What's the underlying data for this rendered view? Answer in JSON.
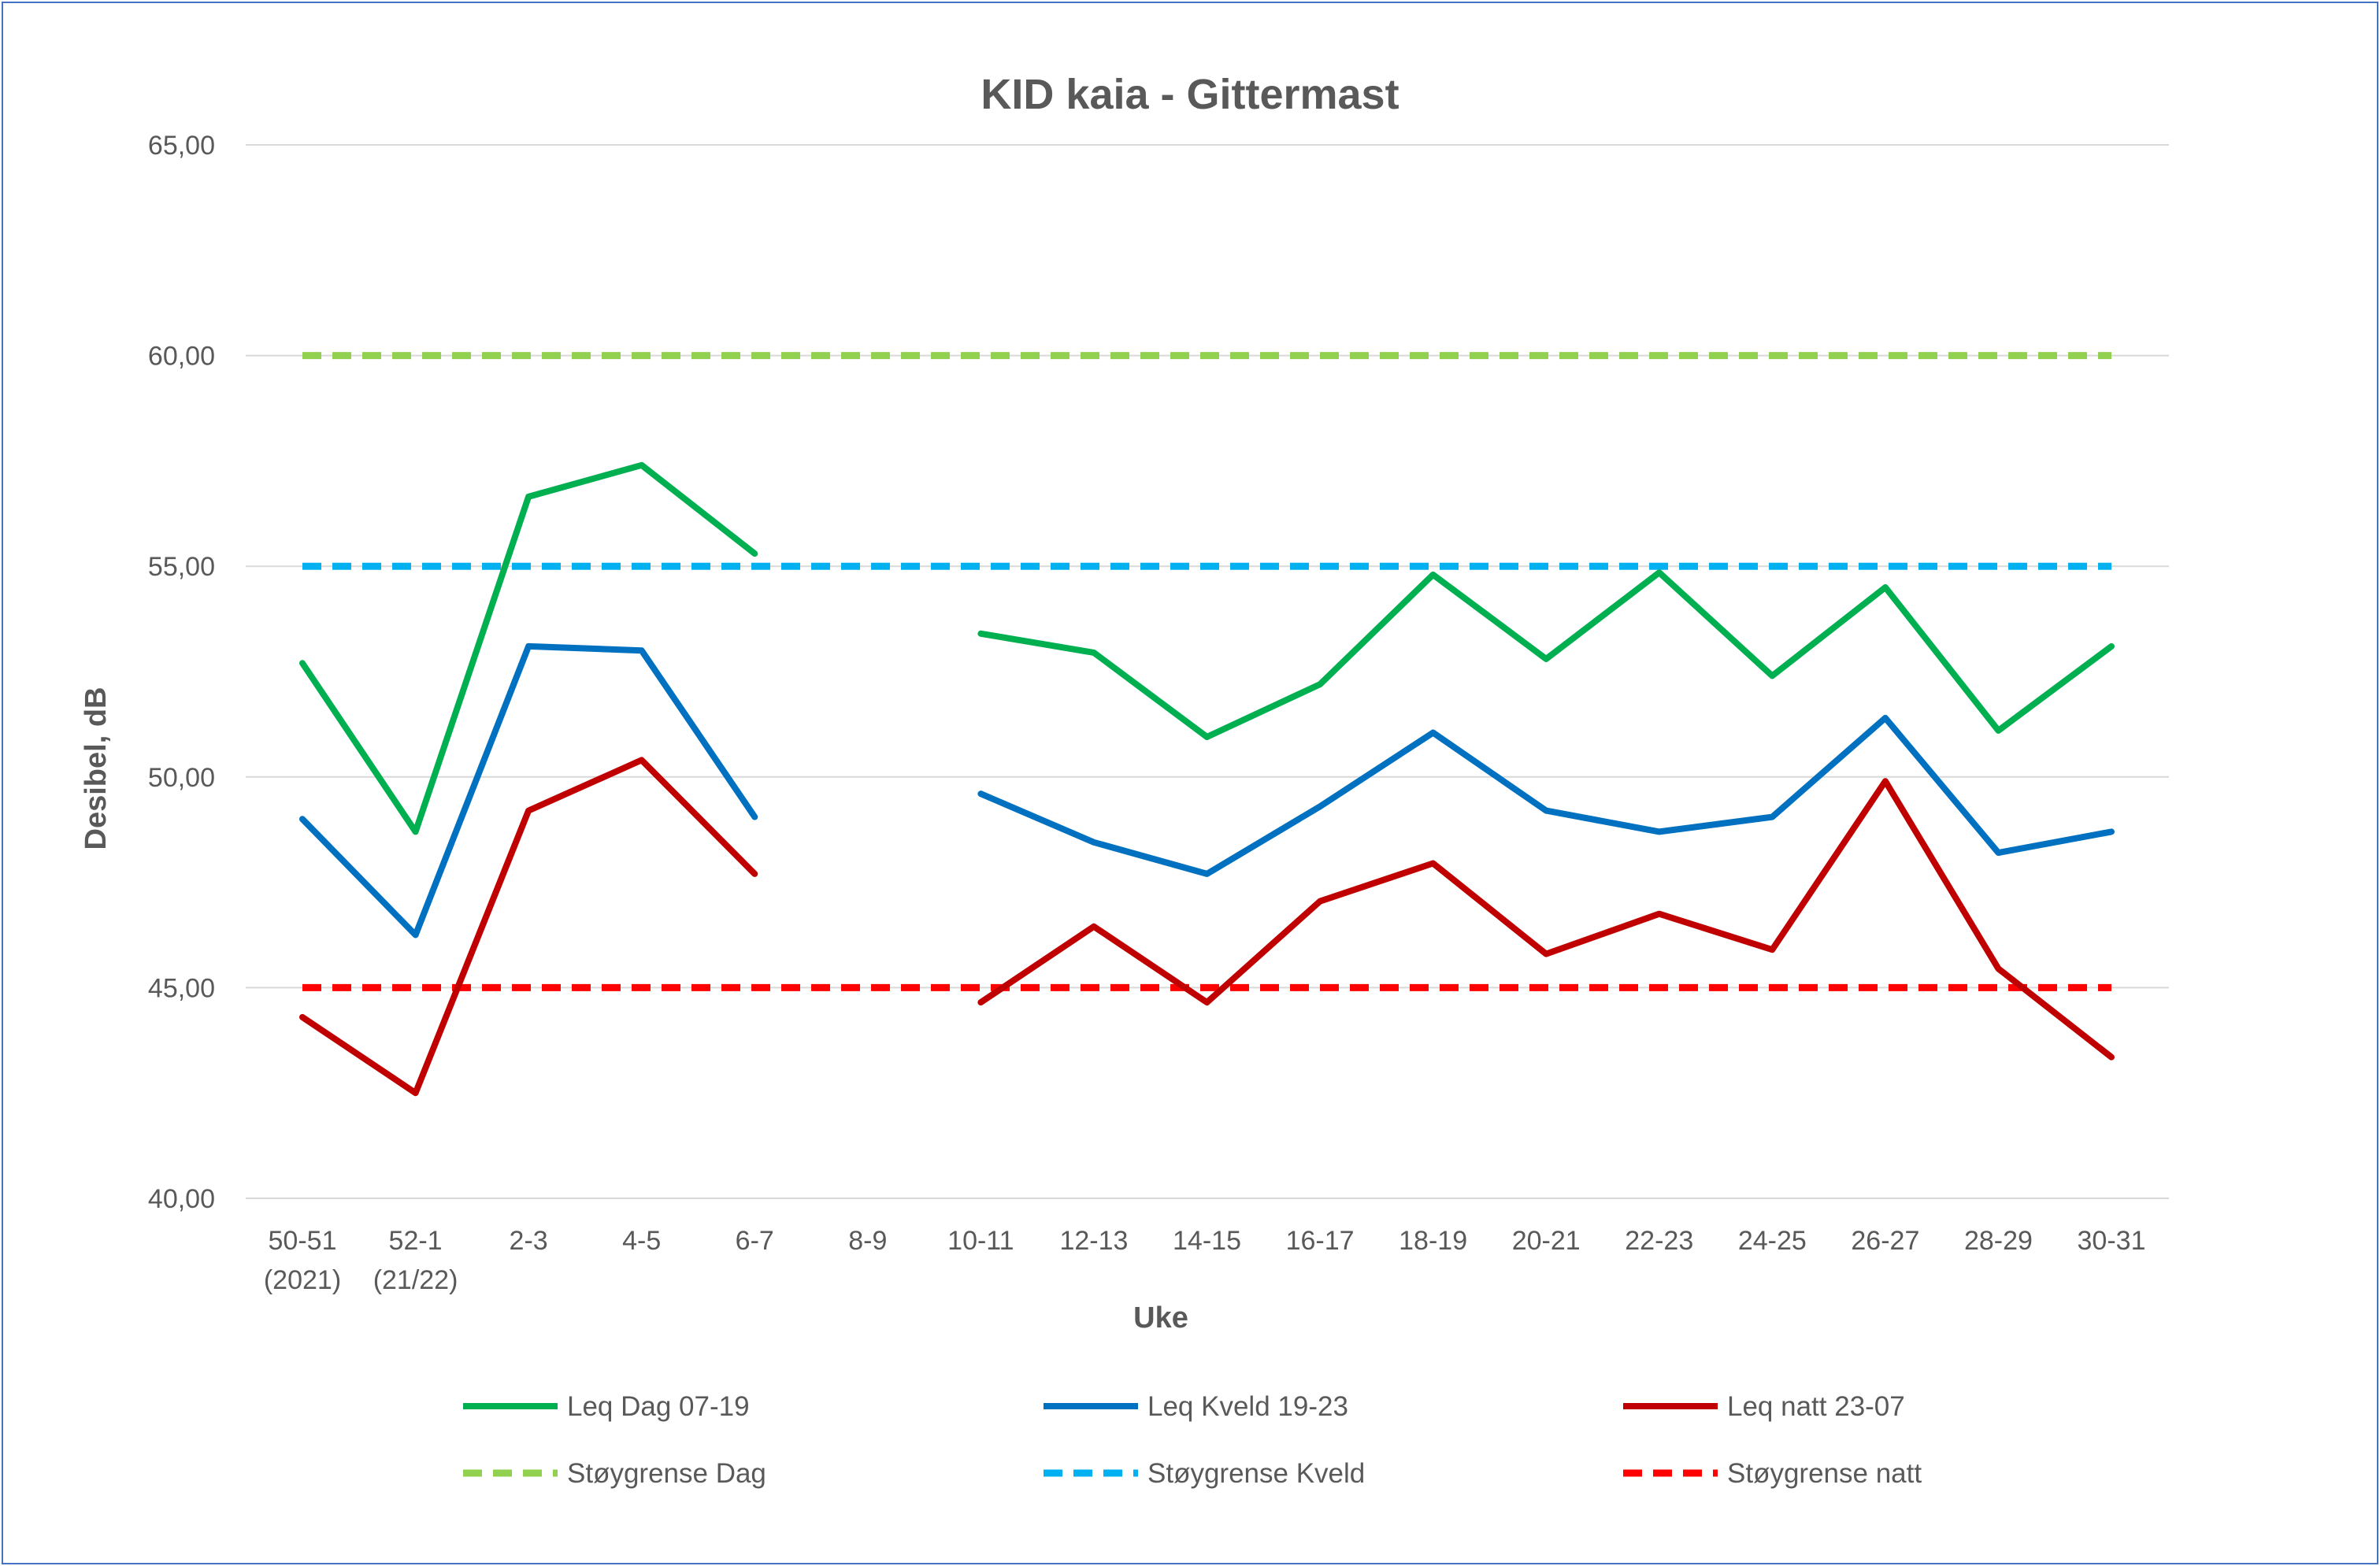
{
  "chart_data": {
    "type": "line",
    "title": "KID kaia - Gittermast",
    "xlabel": "Uke",
    "ylabel": "Desibel, dB",
    "ylim": [
      40,
      65
    ],
    "yticks": [
      40,
      45,
      50,
      55,
      60,
      65
    ],
    "ytick_labels": [
      "40,00",
      "45,00",
      "50,00",
      "55,00",
      "60,00",
      "65,00"
    ],
    "grid": true,
    "legend_position": "bottom",
    "categories": [
      [
        "50-51",
        "(2021)"
      ],
      [
        "52-1",
        "(21/22)"
      ],
      [
        "2-3"
      ],
      [
        "4-5"
      ],
      [
        "6-7"
      ],
      [
        "8-9"
      ],
      [
        "10-11"
      ],
      [
        "12-13"
      ],
      [
        "14-15"
      ],
      [
        "16-17"
      ],
      [
        "18-19"
      ],
      [
        "20-21"
      ],
      [
        "22-23"
      ],
      [
        "24-25"
      ],
      [
        "26-27"
      ],
      [
        "28-29"
      ],
      [
        "30-31"
      ]
    ],
    "series": [
      {
        "name": "Leq Dag 07-19",
        "color": "#00b050",
        "dashed": false,
        "values": [
          52.7,
          48.7,
          56.65,
          57.4,
          55.3,
          null,
          53.4,
          52.95,
          50.95,
          52.2,
          54.8,
          52.8,
          54.85,
          52.4,
          54.5,
          51.1,
          53.1
        ]
      },
      {
        "name": "Leq Kveld 19-23",
        "color": "#0070c0",
        "dashed": false,
        "values": [
          49.0,
          46.25,
          53.1,
          53.0,
          49.05,
          null,
          49.6,
          48.45,
          47.7,
          49.3,
          51.05,
          49.2,
          48.7,
          49.05,
          51.4,
          48.2,
          48.7
        ]
      },
      {
        "name": "Leq natt 23-07",
        "color": "#c00000",
        "dashed": false,
        "values": [
          44.3,
          42.5,
          49.2,
          50.4,
          47.7,
          null,
          44.65,
          46.45,
          44.65,
          47.05,
          47.95,
          45.8,
          46.75,
          45.9,
          49.9,
          45.45,
          43.35
        ]
      },
      {
        "name": "Støygrense Dag",
        "color": "#92d050",
        "dashed": true,
        "values": [
          60,
          60,
          60,
          60,
          60,
          60,
          60,
          60,
          60,
          60,
          60,
          60,
          60,
          60,
          60,
          60,
          60
        ]
      },
      {
        "name": "Støygrense Kveld",
        "color": "#00b0f0",
        "dashed": true,
        "values": [
          55,
          55,
          55,
          55,
          55,
          55,
          55,
          55,
          55,
          55,
          55,
          55,
          55,
          55,
          55,
          55,
          55
        ]
      },
      {
        "name": "Støygrense natt",
        "color": "#ff0000",
        "dashed": true,
        "values": [
          45,
          45,
          45,
          45,
          45,
          45,
          45,
          45,
          45,
          45,
          45,
          45,
          45,
          45,
          45,
          45,
          45
        ]
      }
    ]
  }
}
